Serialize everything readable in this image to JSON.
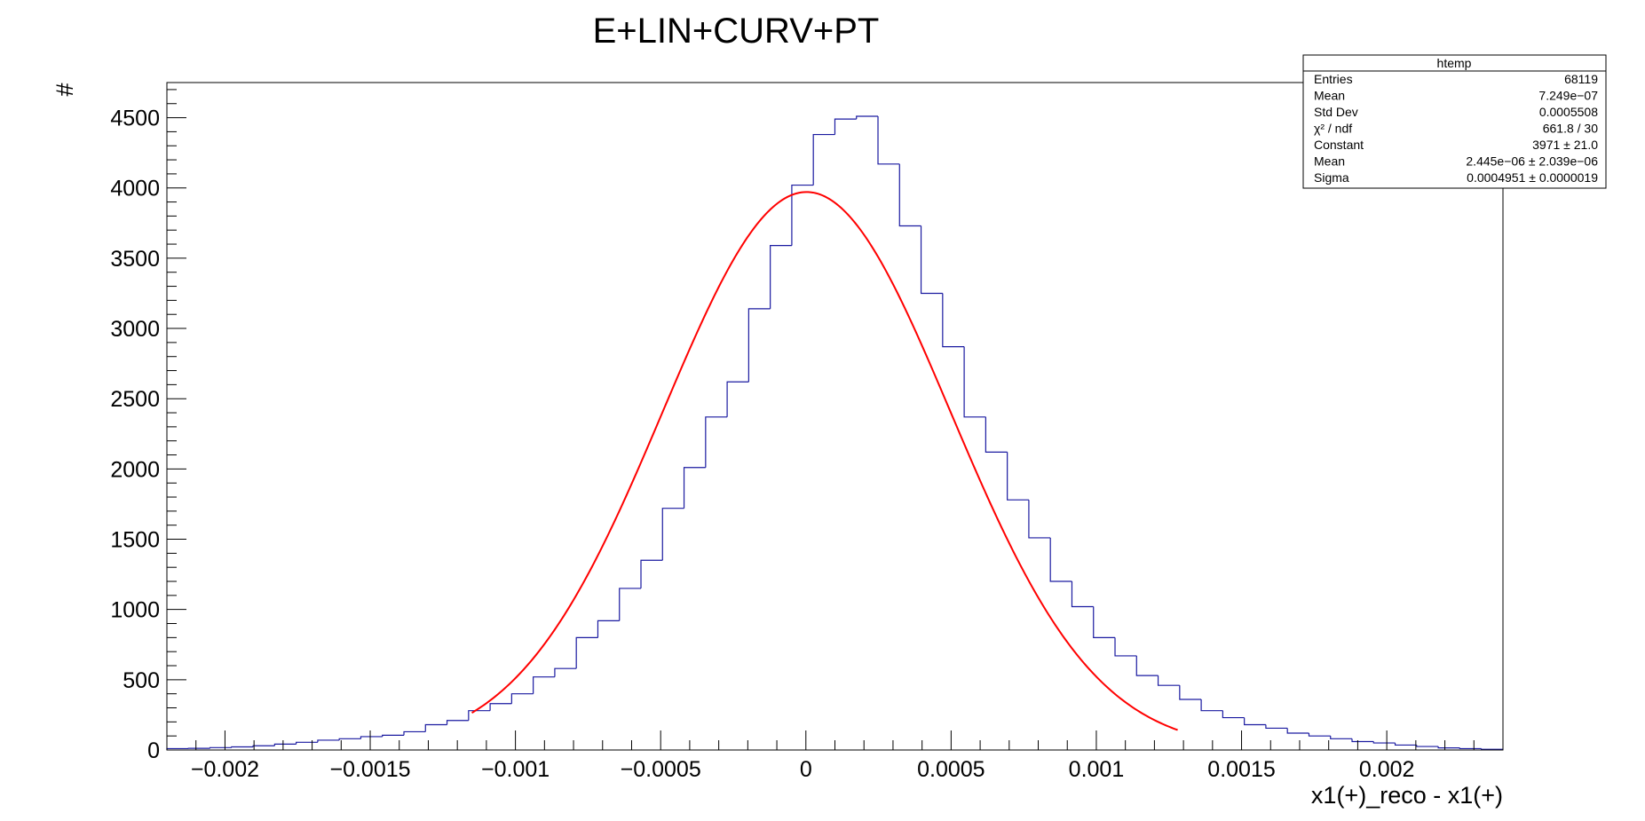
{
  "chart_data": {
    "type": "bar",
    "title": "E+LIN+CURV+PT",
    "xlabel": "x1(+)_reco - x1(+)",
    "ylabel": "#",
    "xlim": [
      -0.0022,
      0.0024
    ],
    "ylim": [
      0,
      4750
    ],
    "grid": false,
    "x_ticks": [
      {
        "v": -0.002,
        "label": "−0.002"
      },
      {
        "v": -0.0015,
        "label": "−0.0015"
      },
      {
        "v": -0.001,
        "label": "−0.001"
      },
      {
        "v": -0.0005,
        "label": "−0.0005"
      },
      {
        "v": 0,
        "label": "0"
      },
      {
        "v": 0.0005,
        "label": "0.0005"
      },
      {
        "v": 0.001,
        "label": "0.001"
      },
      {
        "v": 0.0015,
        "label": "0.0015"
      },
      {
        "v": 0.002,
        "label": "0.002"
      }
    ],
    "y_ticks": [
      {
        "v": 0,
        "label": "0"
      },
      {
        "v": 500,
        "label": "500"
      },
      {
        "v": 1000,
        "label": "1000"
      },
      {
        "v": 1500,
        "label": "1500"
      },
      {
        "v": 2000,
        "label": "2000"
      },
      {
        "v": 2500,
        "label": "2500"
      },
      {
        "v": 3000,
        "label": "3000"
      },
      {
        "v": 3500,
        "label": "3500"
      },
      {
        "v": 4000,
        "label": "4000"
      },
      {
        "v": 4500,
        "label": "4500"
      }
    ],
    "histogram": {
      "color": "#1a1aa0",
      "bin_lo": -0.0022,
      "bin_width": 7.419e-05,
      "counts": [
        10,
        12,
        17,
        22,
        30,
        42,
        55,
        70,
        80,
        95,
        105,
        130,
        180,
        210,
        280,
        330,
        400,
        520,
        580,
        800,
        920,
        1150,
        1350,
        1720,
        2010,
        2370,
        2620,
        3140,
        3590,
        4020,
        4380,
        4490,
        4510,
        4170,
        3730,
        3250,
        2870,
        2370,
        2120,
        1780,
        1510,
        1200,
        1020,
        800,
        670,
        530,
        460,
        360,
        280,
        230,
        180,
        155,
        120,
        100,
        80,
        60,
        50,
        35,
        25,
        15,
        10,
        5
      ]
    },
    "fit": {
      "color": "#ff0000",
      "constant": 3971,
      "mean": 2.445e-06,
      "sigma": 0.0004951,
      "range": [
        -0.00115,
        0.00128
      ]
    }
  },
  "stats_box": {
    "title": "htemp",
    "rows": [
      {
        "label": "Entries",
        "value": "68119"
      },
      {
        "label": "Mean",
        "value": "7.249e−07"
      },
      {
        "label": "Std Dev",
        "value": "0.0005508"
      },
      {
        "label": "χ² / ndf",
        "value": "661.8 / 30"
      },
      {
        "label": "Constant",
        "value": "3971 ± 21.0"
      },
      {
        "label": "Mean",
        "value": "2.445e−06 ± 2.039e−06"
      },
      {
        "label": "Sigma",
        "value": "0.0004951 ± 0.0000019"
      }
    ]
  }
}
